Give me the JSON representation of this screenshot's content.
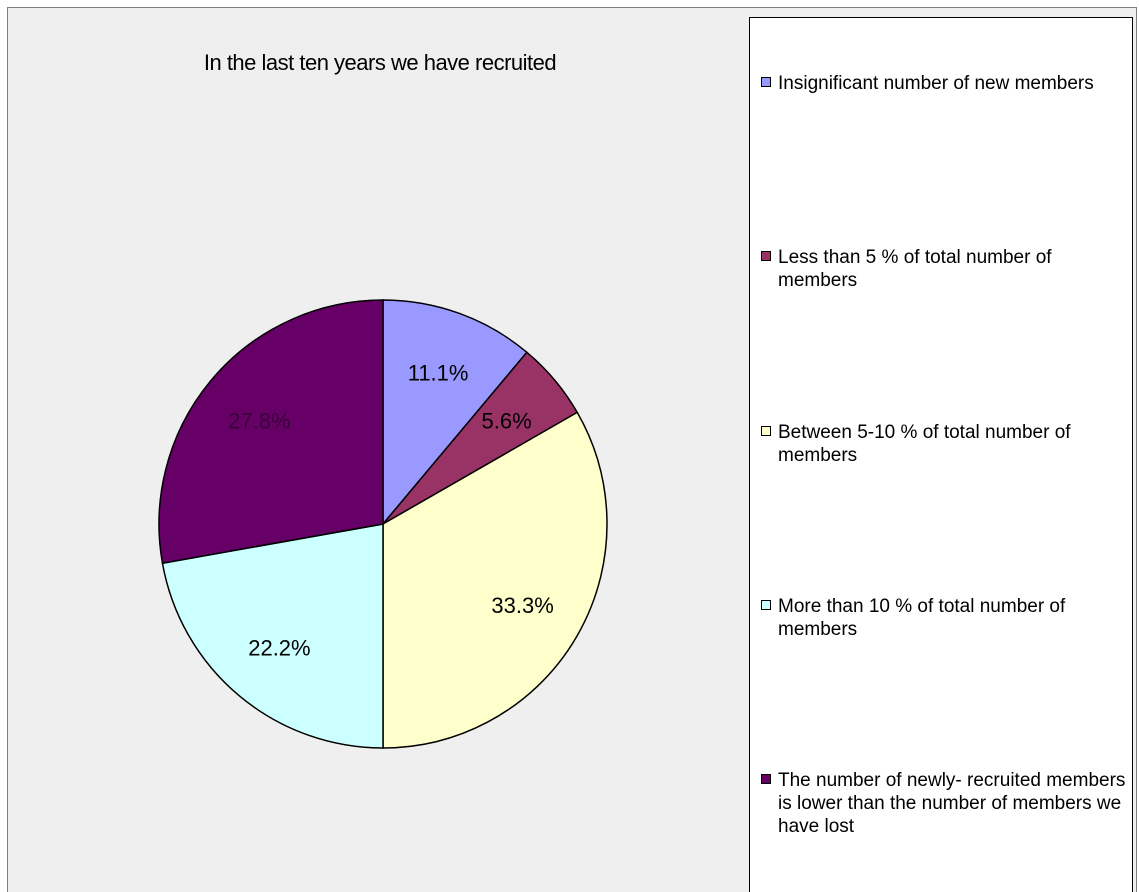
{
  "chart_data": {
    "type": "pie",
    "title": "In the last ten years we have recruited",
    "slices": [
      {
        "label": "Insignificant number of new members",
        "value": 11.1,
        "display": "11.1%",
        "color": "#9999ff",
        "label_color": "#000000"
      },
      {
        "label": "Less than 5 % of total number of members",
        "value": 5.6,
        "display": "5.6%",
        "color": "#993366",
        "label_color": "#000000"
      },
      {
        "label": "Between 5-10 % of total number of members",
        "value": 33.3,
        "display": "33.3%",
        "color": "#ffffcc",
        "label_color": "#000000"
      },
      {
        "label": "More than 10 % of total number of members",
        "value": 22.2,
        "display": "22.2%",
        "color": "#ccffff",
        "label_color": "#000000"
      },
      {
        "label": "The number of newly- recruited members is lower than the number of members we have lost",
        "value": 27.8,
        "display": "27.8%",
        "color": "#660066",
        "label_color": "#3a003a"
      }
    ],
    "start_angle": "12 o'clock",
    "direction": "clockwise",
    "legend_position": "right"
  }
}
